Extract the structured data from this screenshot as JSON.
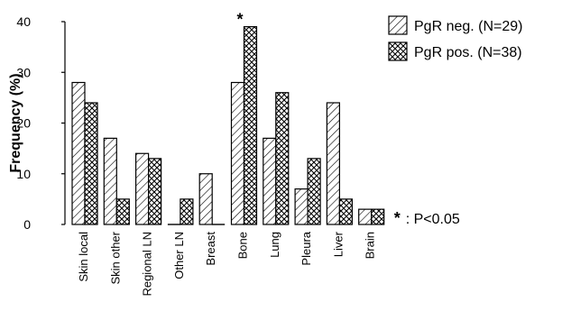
{
  "chart_data": {
    "type": "bar",
    "categories": [
      "Skin local",
      "Skin other",
      "Regional LN",
      "Other LN",
      "Breast",
      "Bone",
      "Lung",
      "Pleura",
      "Liver",
      "Brain"
    ],
    "series": [
      {
        "name": "PgR neg. (N=29)",
        "values": [
          28,
          17,
          14,
          0,
          10,
          28,
          17,
          7,
          24,
          3
        ],
        "pattern": "diagonal-hatch"
      },
      {
        "name": "PgR pos. (N=38)",
        "values": [
          24,
          5,
          13,
          5,
          0,
          39,
          26,
          13,
          5,
          3
        ],
        "pattern": "cross-hatch"
      }
    ],
    "ylabel": "Frequency (%)",
    "ylim": [
      0,
      40
    ],
    "yticks": [
      "0",
      "10",
      "20",
      "30",
      "40"
    ],
    "significance": {
      "category": "Bone",
      "marker": "*"
    },
    "legend_position": "top-right",
    "grid": false
  },
  "annotation": {
    "marker": "*",
    "text": ": P<0.05"
  }
}
